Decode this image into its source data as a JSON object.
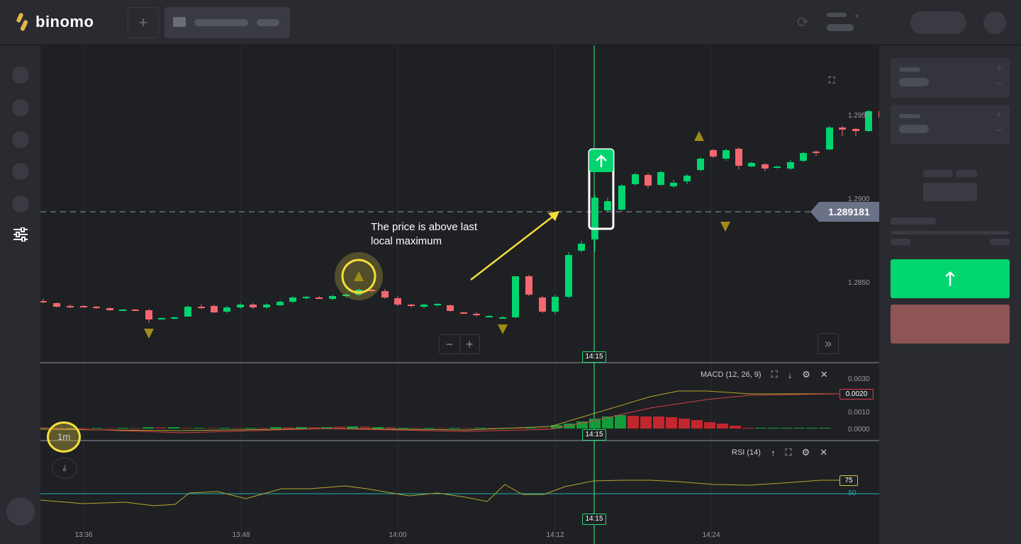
{
  "header": {
    "logo_text": "binomo",
    "add_tab_label": "+",
    "brand_color": "#e2b64a"
  },
  "chart": {
    "current_price": "1.289181",
    "price_axis_ticks": [
      "1.2950",
      "1.2900",
      "1.2850"
    ],
    "time_axis_ticks": [
      "13:36",
      "13:48",
      "14:00",
      "14:12",
      "14:24"
    ],
    "annotation_text_line1": "The price is above last",
    "annotation_text_line2": "local maximum",
    "time_marker": "14:15",
    "zoom_out_label": "−",
    "zoom_in_label": "+",
    "skip_label": "»",
    "timeframe_label": "1m",
    "up_color": "#00d56e",
    "down_color": "#f5676f",
    "highlight_color": "#f4de3c"
  },
  "macd": {
    "label": "MACD (12, 26, 9)",
    "ticks": [
      "0.0030",
      "0.0020",
      "0.0010",
      "0.0000"
    ],
    "current_value": "0.0020"
  },
  "rsi": {
    "label": "RSI (14)",
    "upper_level": "75",
    "mid_level": "50"
  },
  "icons": {
    "fullscreen": "fullscreen-icon",
    "settings": "gear-icon",
    "close": "close-icon",
    "move_up": "arrow-up-icon",
    "move_down": "arrow-down-icon"
  }
}
